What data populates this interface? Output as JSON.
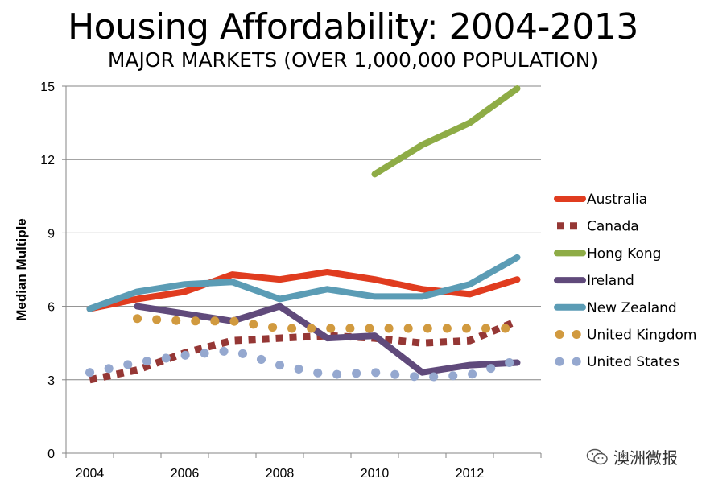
{
  "chart_data": {
    "type": "line",
    "title": "Housing Affordability: 2004-2013",
    "subtitle": "MAJOR MARKETS (OVER 1,000,000 POPULATION)",
    "ylabel": "Median Multiple",
    "xlabel": "",
    "xlim": [
      2004,
      2013
    ],
    "ylim": [
      0,
      15
    ],
    "x_ticks": [
      2004,
      2006,
      2008,
      2010,
      2012
    ],
    "y_ticks": [
      0,
      3,
      6,
      9,
      12,
      15
    ],
    "legend_position": "right",
    "grid": "horizontal",
    "series": [
      {
        "name": "Australia",
        "color": "#e03c1f",
        "style": "solid",
        "x": [
          2004,
          2005,
          2006,
          2007,
          2008,
          2009,
          2010,
          2011,
          2012,
          2013
        ],
        "y": [
          5.9,
          6.3,
          6.6,
          7.3,
          7.1,
          7.4,
          7.1,
          6.7,
          6.5,
          7.1
        ]
      },
      {
        "name": "Canada",
        "color": "#953735",
        "style": "square-dot",
        "x": [
          2004,
          2005,
          2006,
          2007,
          2008,
          2009,
          2010,
          2011,
          2012,
          2013
        ],
        "y": [
          3.0,
          3.4,
          4.1,
          4.6,
          4.7,
          4.8,
          4.7,
          4.5,
          4.6,
          5.4
        ]
      },
      {
        "name": "Hong Kong",
        "color": "#8eac46",
        "style": "solid",
        "x": [
          2010,
          2011,
          2012,
          2013
        ],
        "y": [
          11.4,
          12.6,
          13.5,
          14.9
        ]
      },
      {
        "name": "Ireland",
        "color": "#604a7b",
        "style": "solid",
        "x": [
          2005,
          2006,
          2007,
          2008,
          2009,
          2010,
          2011,
          2012,
          2013
        ],
        "y": [
          6.0,
          5.7,
          5.4,
          6.0,
          4.7,
          4.8,
          3.3,
          3.6,
          3.7
        ]
      },
      {
        "name": "New Zealand",
        "color": "#5b9cb5",
        "style": "solid",
        "x": [
          2004,
          2005,
          2006,
          2007,
          2008,
          2009,
          2010,
          2011,
          2012,
          2013
        ],
        "y": [
          5.9,
          6.6,
          6.9,
          7.0,
          6.3,
          6.7,
          6.4,
          6.4,
          6.9,
          8.0
        ]
      },
      {
        "name": "United Kingdom",
        "color": "#d19a3f",
        "style": "round-dot",
        "x": [
          2005,
          2006,
          2007,
          2008,
          2009,
          2010,
          2011,
          2012,
          2013
        ],
        "y": [
          5.5,
          5.4,
          5.4,
          5.1,
          5.1,
          5.1,
          5.1,
          5.1,
          5.1
        ]
      },
      {
        "name": "United States",
        "color": "#95a8cf",
        "style": "round-dot",
        "x": [
          2004,
          2005,
          2006,
          2007,
          2008,
          2009,
          2010,
          2011,
          2012,
          2013
        ],
        "y": [
          3.3,
          3.7,
          4.0,
          4.2,
          3.6,
          3.2,
          3.3,
          3.1,
          3.2,
          3.8
        ]
      }
    ]
  },
  "watermark": {
    "text": "澳洲微报",
    "icon": "wechat-icon"
  }
}
